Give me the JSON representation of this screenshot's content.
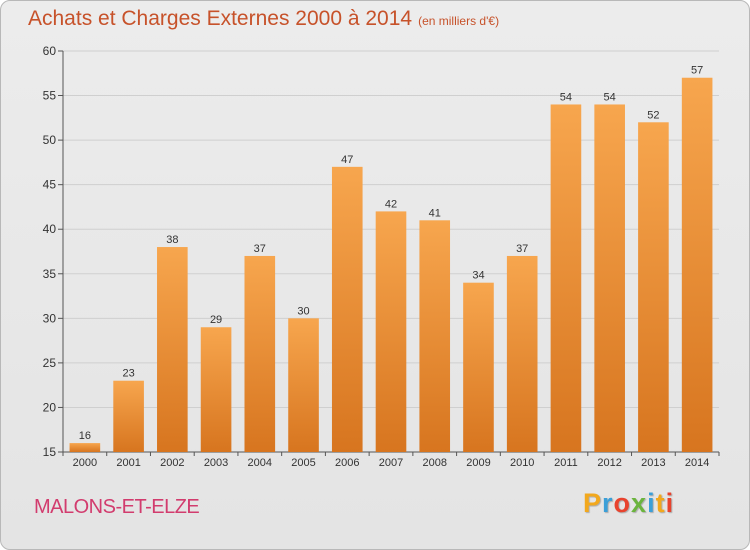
{
  "header": {
    "title": "Achats et Charges Externes 2000 à 2014",
    "subtitle": "(en milliers d'€)"
  },
  "footer": {
    "commune": "MALONS-ET-ELZE",
    "logo": "Proxiti",
    "logo_colors": [
      "#f2a81d",
      "#3b9fd8",
      "#e8432e",
      "#6bb43d",
      "#3b9fd8",
      "#f2a81d",
      "#e8432e"
    ]
  },
  "colors": {
    "bar_top": "#f7a64e",
    "bar_bottom": "#d7751f",
    "grid": "#cfcfcf",
    "title": "#c7522a"
  },
  "chart_data": {
    "type": "bar",
    "title": "Achats et Charges Externes 2000 à 2014",
    "subtitle": "(en milliers d'€)",
    "xlabel": "",
    "ylabel": "",
    "categories": [
      "2000",
      "2001",
      "2002",
      "2003",
      "2004",
      "2005",
      "2006",
      "2007",
      "2008",
      "2009",
      "2010",
      "2011",
      "2012",
      "2013",
      "2014"
    ],
    "values": [
      16,
      23,
      38,
      29,
      37,
      30,
      47,
      42,
      41,
      34,
      37,
      54,
      54,
      52,
      57
    ],
    "ylim": [
      15,
      60
    ],
    "yticks": [
      15,
      20,
      25,
      30,
      35,
      40,
      45,
      50,
      55,
      60
    ],
    "grid": true,
    "data_labels": true
  }
}
